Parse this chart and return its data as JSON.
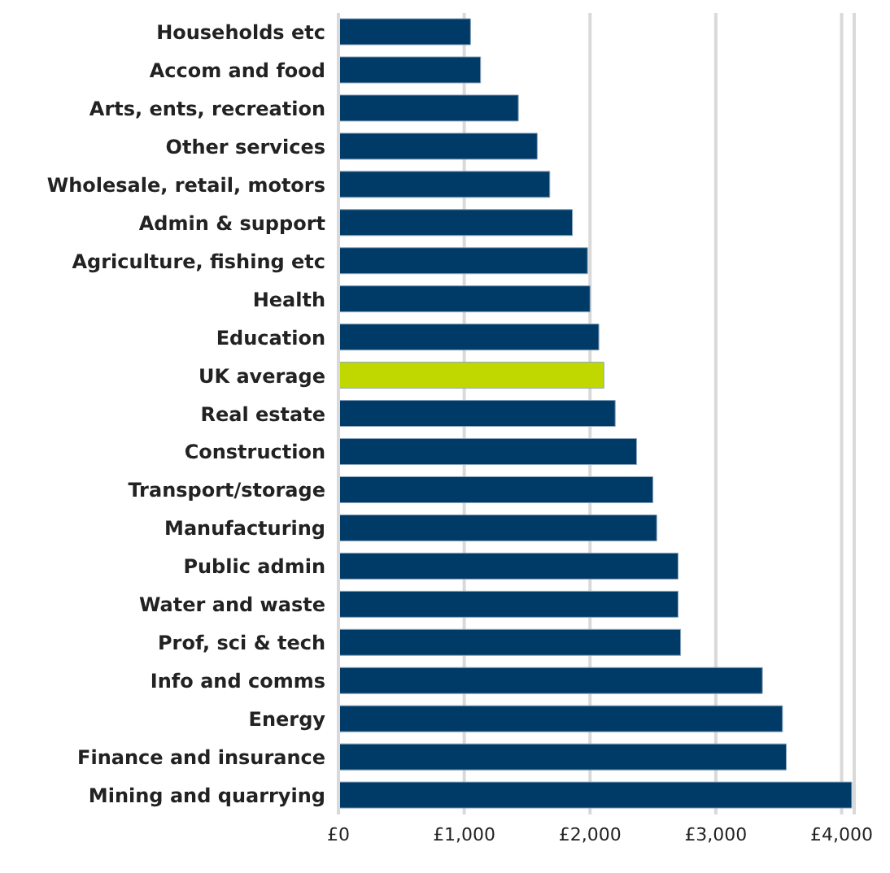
{
  "chart_data": {
    "type": "bar",
    "orientation": "horizontal",
    "categories": [
      "Households etc",
      "Accom and food",
      "Arts, ents, recreation",
      "Other services",
      "Wholesale, retail, motors",
      "Admin & support",
      "Agriculture, fishing etc",
      "Health",
      "Education",
      "UK average",
      "Real estate",
      "Construction",
      "Transport/storage",
      "Manufacturing",
      "Public admin",
      "Water and waste",
      "Prof, sci & tech",
      "Info and comms",
      "Energy",
      "Finance and insurance",
      "Mining and quarrying"
    ],
    "values": [
      1050,
      1130,
      1430,
      1580,
      1680,
      1860,
      1980,
      2000,
      2070,
      2110,
      2200,
      2370,
      2500,
      2530,
      2700,
      2700,
      2720,
      3370,
      3530,
      3560,
      4080
    ],
    "colors": [
      "#003a66",
      "#003a66",
      "#003a66",
      "#003a66",
      "#003a66",
      "#003a66",
      "#003a66",
      "#003a66",
      "#003a66",
      "#c0d800",
      "#003a66",
      "#003a66",
      "#003a66",
      "#003a66",
      "#003a66",
      "#003a66",
      "#003a66",
      "#003a66",
      "#003a66",
      "#003a66",
      "#003a66"
    ],
    "xlim": [
      0,
      4100
    ],
    "xticks": [
      {
        "value": 0,
        "label": "£0"
      },
      {
        "value": 1000,
        "label": "£1,000"
      },
      {
        "value": 2000,
        "label": "£2,000"
      },
      {
        "value": 3000,
        "label": "£3,000"
      },
      {
        "value": 4000,
        "label": "£4,000"
      }
    ],
    "grid": "x"
  }
}
